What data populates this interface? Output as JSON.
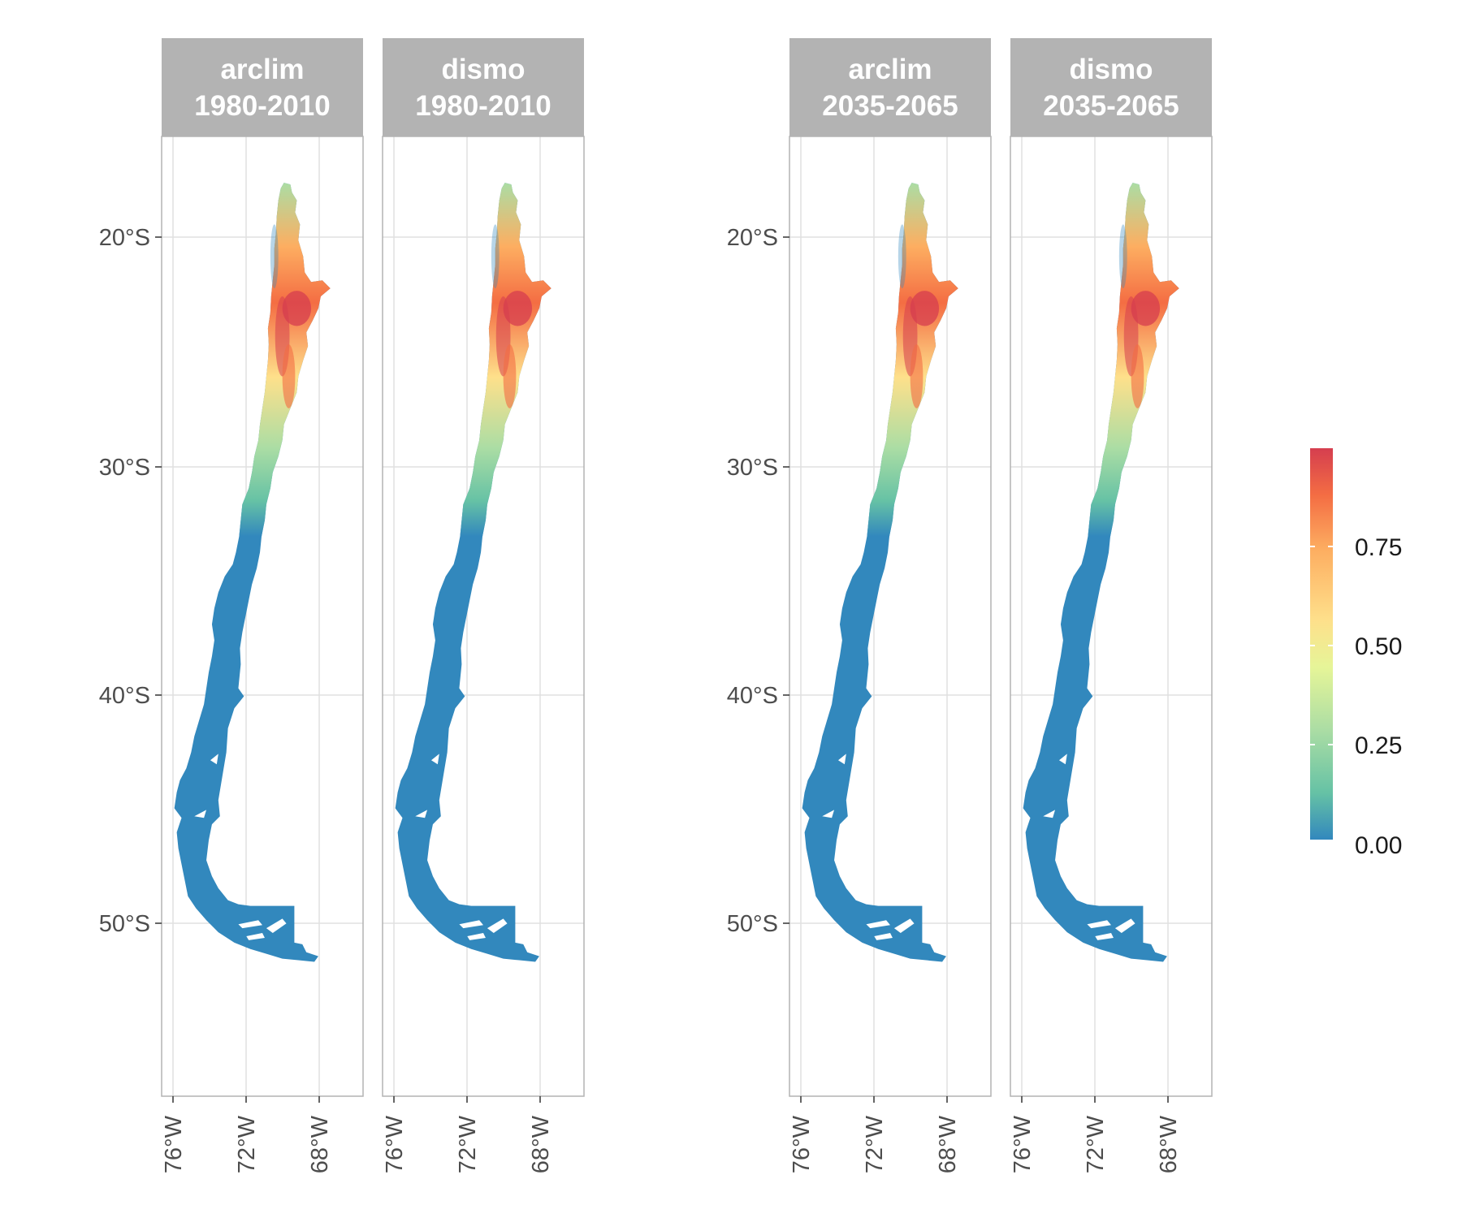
{
  "panels": [
    {
      "method": "arclim",
      "period": "1980-2010"
    },
    {
      "method": "dismo",
      "period": "1980-2010"
    },
    {
      "method": "arclim",
      "period": "2035-2065"
    },
    {
      "method": "dismo",
      "period": "2035-2065"
    }
  ],
  "lat_ticks": [
    "20°S",
    "30°S",
    "40°S",
    "50°S"
  ],
  "lon_ticks": [
    "76°W",
    "72°W",
    "68°W"
  ],
  "legend": {
    "labels": [
      "0.75",
      "0.50",
      "0.25",
      "0.00"
    ],
    "colors": [
      "#3288bd",
      "#66c2a5",
      "#abdda4",
      "#e6f598",
      "#fee08b",
      "#fdae61",
      "#f46d43",
      "#d53e4f"
    ]
  },
  "colors": {
    "strip": "#b3b3b3",
    "grid": "#e0e0e0",
    "panel_border": "#b3b3b3",
    "low_value": "#3288bd"
  }
}
